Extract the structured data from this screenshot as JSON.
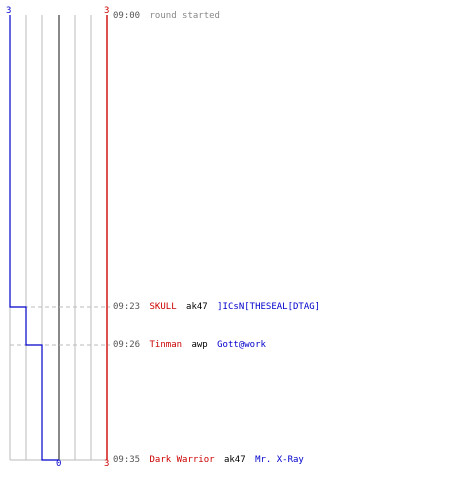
{
  "colors": {
    "team_a": "#cc0000",
    "team_b": "#0000cc",
    "time": "#555555",
    "message": "#888888",
    "grid": "#bbbbbb",
    "center": "#555555",
    "event_dash": "#bbbbbb"
  },
  "axis_labels": {
    "top_left": "3",
    "top_right": "3",
    "bottom_center": "0",
    "bottom_right": "3"
  },
  "events": [
    {
      "time": "09:00",
      "type": "message",
      "text": "round started"
    },
    {
      "time": "09:23",
      "type": "kill",
      "killer": "SKULL",
      "weapon": "ak47",
      "victim": "]ICsN[THESEAL[DTAG]",
      "blue_alive": 2
    },
    {
      "time": "09:26",
      "type": "kill",
      "killer": "Tinman",
      "weapon": "awp",
      "victim": "Gott@work",
      "blue_alive": 1
    },
    {
      "time": "09:35",
      "type": "kill",
      "killer": "Dark Warrior",
      "weapon": "ak47",
      "victim": "Mr. X-Ray",
      "blue_alive": 0
    }
  ]
}
